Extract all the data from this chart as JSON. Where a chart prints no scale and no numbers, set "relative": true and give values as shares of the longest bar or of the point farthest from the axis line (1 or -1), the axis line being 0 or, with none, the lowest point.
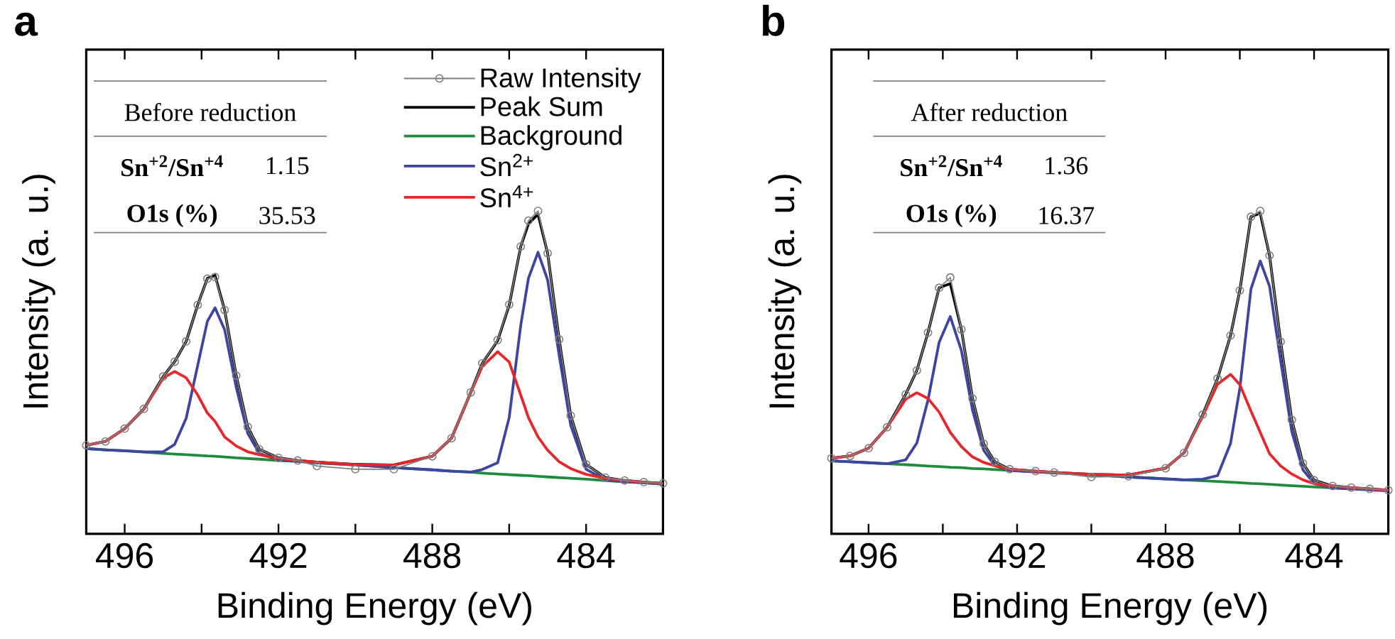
{
  "chart_data": [
    {
      "type": "line",
      "title": "a",
      "xlabel": "Binding Energy (eV)",
      "ylabel": "Intensity (a. u.)",
      "relative": true,
      "legend": "top right",
      "xlim": [
        497,
        482
      ],
      "xticks": [
        496,
        {
          "value": 494,
          "label": null
        },
        492,
        {
          "value": 490,
          "label": null
        },
        488,
        {
          "value": 486,
          "label": null
        },
        484
      ],
      "annotations": [
        "Before reduction",
        "Sn$^{+2}$/Sn$^{+4}$",
        "1.15",
        "O1s (%)",
        "35.53"
      ],
      "x": [
        497,
        496.5,
        496,
        495.5,
        495,
        494.7,
        494.4,
        494.1,
        493.85,
        493.65,
        493.4,
        493.1,
        492.8,
        492.5,
        492,
        491.5,
        491,
        490,
        489,
        488,
        487.5,
        487,
        486.7,
        486.3,
        486,
        485.7,
        485.5,
        485.25,
        485,
        484.7,
        484.4,
        484,
        483.5,
        483,
        482.5,
        482
      ],
      "series": [
        {
          "name": "Raw Intensity",
          "color": "#7f7f7f",
          "marker": "circle",
          "values": [
            0.274,
            0.286,
            0.326,
            0.387,
            0.487,
            0.533,
            0.596,
            0.709,
            0.79,
            0.795,
            0.693,
            0.49,
            0.331,
            0.262,
            0.235,
            0.227,
            0.21,
            0.2,
            0.2,
            0.24,
            0.296,
            0.438,
            0.528,
            0.6,
            0.71,
            0.89,
            0.97,
            1.0,
            0.869,
            0.602,
            0.366,
            0.215,
            0.174,
            0.165,
            0.16,
            0.156
          ]
        },
        {
          "name": "Peak Sum",
          "color": "#000000",
          "values": [
            0.274,
            0.286,
            0.326,
            0.387,
            0.487,
            0.533,
            0.596,
            0.709,
            0.791,
            0.8,
            0.693,
            0.49,
            0.331,
            0.262,
            0.235,
            0.227,
            0.222,
            0.215,
            0.213,
            0.24,
            0.296,
            0.438,
            0.528,
            0.598,
            0.708,
            0.89,
            0.96,
            0.99,
            0.869,
            0.602,
            0.366,
            0.215,
            0.174,
            0.165,
            0.16,
            0.156
          ]
        },
        {
          "name": "Background",
          "color": "#1e8c3c",
          "values": [
            0.264,
            0.26,
            0.257,
            0.253,
            0.249,
            0.247,
            0.245,
            0.243,
            0.241,
            0.24,
            0.238,
            0.235,
            0.233,
            0.231,
            0.227,
            0.224,
            0.22,
            0.213,
            0.205,
            0.198,
            0.194,
            0.191,
            0.188,
            0.185,
            0.183,
            0.181,
            0.18,
            0.178,
            0.176,
            0.174,
            0.172,
            0.169,
            0.165,
            0.161,
            0.158,
            0.154
          ]
        },
        {
          "name": "Sn$^{2+}$",
          "color": "#3c46a0",
          "values": [
            0.264,
            0.26,
            0.257,
            0.254,
            0.254,
            0.277,
            0.358,
            0.522,
            0.658,
            0.7,
            0.632,
            0.454,
            0.311,
            0.249,
            0.229,
            0.224,
            0.22,
            0.213,
            0.205,
            0.198,
            0.194,
            0.191,
            0.199,
            0.22,
            0.36,
            0.645,
            0.791,
            0.872,
            0.786,
            0.553,
            0.336,
            0.2,
            0.167,
            0.161,
            0.158,
            0.154
          ]
        },
        {
          "name": "Sn$^{4+}$",
          "color": "#e8262a",
          "values": [
            0.274,
            0.286,
            0.326,
            0.386,
            0.482,
            0.503,
            0.483,
            0.43,
            0.374,
            0.348,
            0.3,
            0.272,
            0.254,
            0.245,
            0.233,
            0.227,
            0.222,
            0.214,
            0.213,
            0.24,
            0.296,
            0.437,
            0.518,
            0.564,
            0.532,
            0.43,
            0.36,
            0.3,
            0.259,
            0.223,
            0.202,
            0.184,
            0.172,
            0.165,
            0.16,
            0.156
          ]
        }
      ]
    },
    {
      "type": "line",
      "title": "b",
      "xlabel": "Binding Energy (eV)",
      "ylabel": "Intensity (a. u.)",
      "relative": true,
      "xlim": [
        497,
        482
      ],
      "xticks": [
        496,
        {
          "value": 494,
          "label": null
        },
        492,
        {
          "value": 490,
          "label": null
        },
        488,
        {
          "value": 486,
          "label": null
        },
        484
      ],
      "annotations": [
        "After reduction",
        "Sn$^{+2}$/Sn$^{+4}$",
        "1.36",
        "O1s (%)",
        "16.37"
      ],
      "x": [
        497,
        496.5,
        496,
        495.5,
        495,
        494.7,
        494.4,
        494.1,
        493.8,
        493.5,
        493.2,
        492.9,
        492.6,
        492.2,
        491.5,
        491,
        490,
        489,
        488,
        487.5,
        487,
        486.6,
        486.25,
        486,
        485.7,
        485.45,
        485.2,
        484.9,
        484.6,
        484.3,
        484,
        483.5,
        483,
        482.5,
        482
      ],
      "series": [
        {
          "color": "#7f7f7f",
          "marker": "circle",
          "values": [
            0.234,
            0.241,
            0.265,
            0.33,
            0.432,
            0.506,
            0.623,
            0.762,
            0.794,
            0.633,
            0.419,
            0.279,
            0.223,
            0.2,
            0.194,
            0.19,
            0.176,
            0.178,
            0.203,
            0.251,
            0.369,
            0.481,
            0.614,
            0.754,
            0.982,
            1.0,
            0.862,
            0.595,
            0.353,
            0.218,
            0.166,
            0.148,
            0.143,
            0.139,
            0.135
          ]
        },
        {
          "color": "#000000",
          "values": [
            0.234,
            0.241,
            0.265,
            0.33,
            0.432,
            0.506,
            0.623,
            0.762,
            0.775,
            0.633,
            0.419,
            0.279,
            0.223,
            0.2,
            0.194,
            0.19,
            0.184,
            0.182,
            0.203,
            0.251,
            0.369,
            0.481,
            0.614,
            0.754,
            0.982,
            0.993,
            0.862,
            0.595,
            0.353,
            0.218,
            0.166,
            0.148,
            0.143,
            0.139,
            0.135
          ]
        },
        {
          "color": "#1e8c3c",
          "values": [
            0.226,
            0.223,
            0.22,
            0.217,
            0.214,
            0.212,
            0.21,
            0.208,
            0.206,
            0.205,
            0.202,
            0.201,
            0.199,
            0.196,
            0.192,
            0.189,
            0.183,
            0.176,
            0.17,
            0.167,
            0.164,
            0.162,
            0.16,
            0.158,
            0.156,
            0.155,
            0.153,
            0.151,
            0.149,
            0.147,
            0.145,
            0.142,
            0.139,
            null,
            null
          ]
        },
        {
          "color": "#3c46a0",
          "values": [
            0.226,
            0.223,
            0.22,
            0.217,
            0.229,
            0.281,
            0.414,
            0.593,
            0.673,
            0.568,
            0.383,
            0.259,
            0.211,
            0.196,
            0.192,
            0.189,
            0.183,
            0.176,
            0.17,
            0.167,
            0.169,
            0.18,
            0.28,
            0.45,
            0.758,
            0.845,
            0.767,
            0.536,
            0.317,
            0.198,
            0.156,
            0.142,
            0.139,
            0.136,
            0.133
          ]
        },
        {
          "color": "#e8262a",
          "values": [
            0.234,
            0.241,
            0.265,
            0.33,
            0.417,
            0.437,
            0.419,
            0.377,
            0.314,
            0.27,
            0.238,
            0.221,
            0.211,
            0.2,
            0.194,
            0.19,
            0.184,
            0.182,
            0.203,
            0.251,
            0.364,
            0.463,
            0.494,
            0.462,
            0.38,
            0.314,
            0.248,
            0.21,
            0.185,
            0.167,
            0.155,
            0.148,
            0.143,
            0.139,
            0.135
          ]
        }
      ]
    }
  ]
}
